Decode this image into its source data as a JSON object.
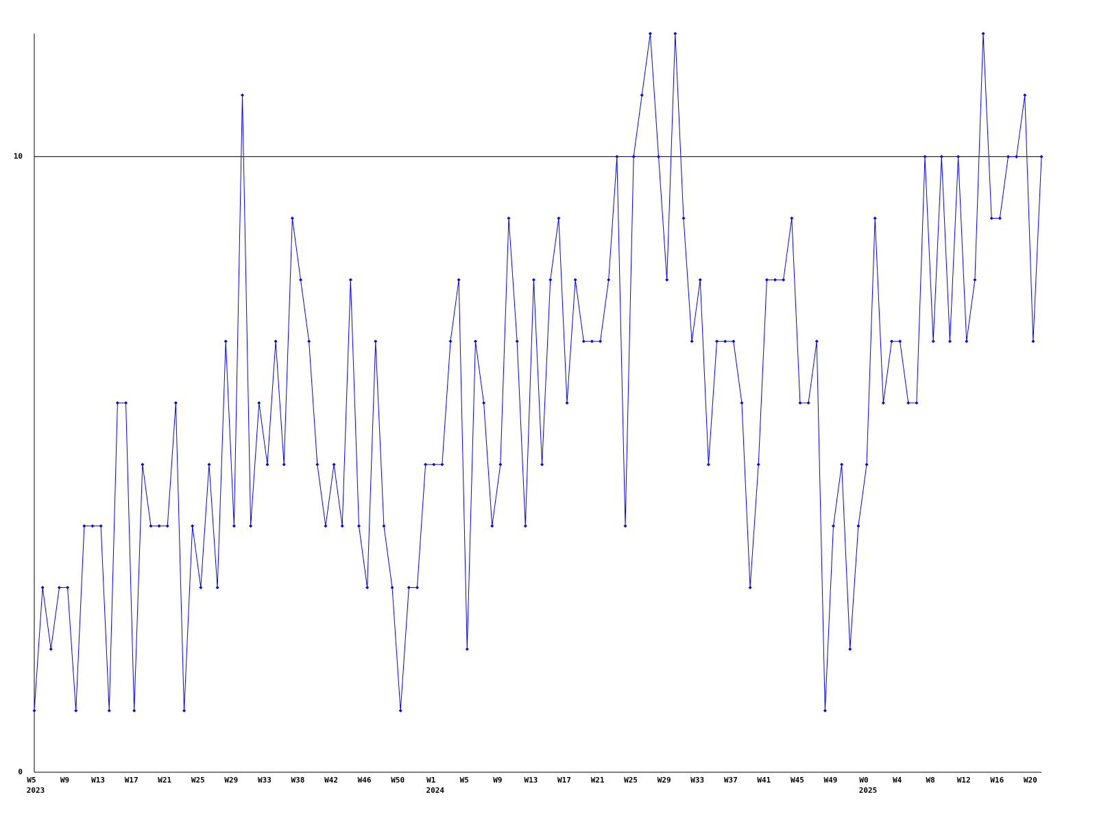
{
  "chart_data": {
    "type": "line",
    "color": "#0000ff",
    "grid": true,
    "ylim": [
      0,
      12
    ],
    "yticks": [
      0,
      10
    ],
    "categories": [
      "W5",
      null,
      null,
      null,
      "W9",
      null,
      null,
      null,
      "W13",
      null,
      null,
      null,
      "W17",
      null,
      null,
      null,
      "W21",
      null,
      null,
      null,
      "W25",
      null,
      null,
      null,
      "W29",
      null,
      null,
      null,
      "W33",
      null,
      null,
      null,
      "W38",
      null,
      null,
      null,
      "W42",
      null,
      null,
      null,
      "W46",
      null,
      null,
      null,
      "W50",
      null,
      null,
      null,
      "W1",
      null,
      null,
      null,
      "W5",
      null,
      null,
      null,
      "W9",
      null,
      null,
      null,
      "W13",
      null,
      null,
      null,
      "W17",
      null,
      null,
      null,
      "W21",
      null,
      null,
      null,
      "W25",
      null,
      null,
      null,
      "W29",
      null,
      null,
      null,
      "W33",
      null,
      null,
      null,
      "W37",
      null,
      null,
      null,
      "W41",
      null,
      null,
      null,
      "W45",
      null,
      null,
      null,
      "W49",
      null,
      null,
      null,
      "W0",
      null,
      null,
      null,
      "W4",
      null,
      null,
      null,
      "W8",
      null,
      null,
      null,
      "W12",
      null,
      null,
      null,
      "W16",
      null,
      null,
      null,
      "W20",
      null
    ],
    "category_years": [
      "2023",
      null,
      null,
      null,
      null,
      null,
      null,
      null,
      null,
      null,
      null,
      null,
      null,
      null,
      null,
      null,
      null,
      null,
      null,
      null,
      null,
      null,
      null,
      null,
      null,
      null,
      null,
      null,
      null,
      null,
      null,
      null,
      null,
      null,
      null,
      null,
      null,
      null,
      null,
      null,
      null,
      null,
      null,
      null,
      null,
      null,
      null,
      null,
      "2024",
      null,
      null,
      null,
      null,
      null,
      null,
      null,
      null,
      null,
      null,
      null,
      null,
      null,
      null,
      null,
      null,
      null,
      null,
      null,
      null,
      null,
      null,
      null,
      null,
      null,
      null,
      null,
      null,
      null,
      null,
      null,
      null,
      null,
      null,
      null,
      null,
      null,
      null,
      null,
      null,
      null,
      null,
      null,
      null,
      null,
      null,
      null,
      null,
      null,
      null,
      null,
      "2025",
      null,
      null,
      null,
      null,
      null,
      null,
      null,
      null,
      null,
      null,
      null,
      null,
      null,
      null,
      null,
      null,
      null,
      null,
      null,
      null,
      null
    ],
    "values": [
      1,
      3,
      2,
      3,
      3,
      1,
      4,
      4,
      4,
      1,
      6,
      6,
      1,
      5,
      4,
      4,
      4,
      6,
      1,
      4,
      3,
      5,
      3,
      7,
      4,
      11,
      4,
      6,
      5,
      7,
      5,
      9,
      8,
      7,
      5,
      4,
      5,
      4,
      8,
      4,
      3,
      7,
      4,
      3,
      1,
      3,
      3,
      5,
      5,
      5,
      7,
      8,
      2,
      7,
      6,
      4,
      5,
      9,
      7,
      4,
      8,
      5,
      8,
      9,
      6,
      8,
      7,
      7,
      7,
      8,
      10,
      4,
      10,
      11,
      12,
      10,
      8,
      12,
      9,
      7,
      8,
      5,
      7,
      7,
      7,
      6,
      3,
      5,
      8,
      8,
      8,
      9,
      6,
      6,
      7,
      1,
      4,
      5,
      2,
      4,
      5,
      9,
      6,
      7,
      7,
      6,
      6,
      10,
      7,
      10,
      7,
      10,
      7,
      8,
      12,
      9,
      9,
      10,
      10,
      11,
      7,
      10
    ]
  }
}
